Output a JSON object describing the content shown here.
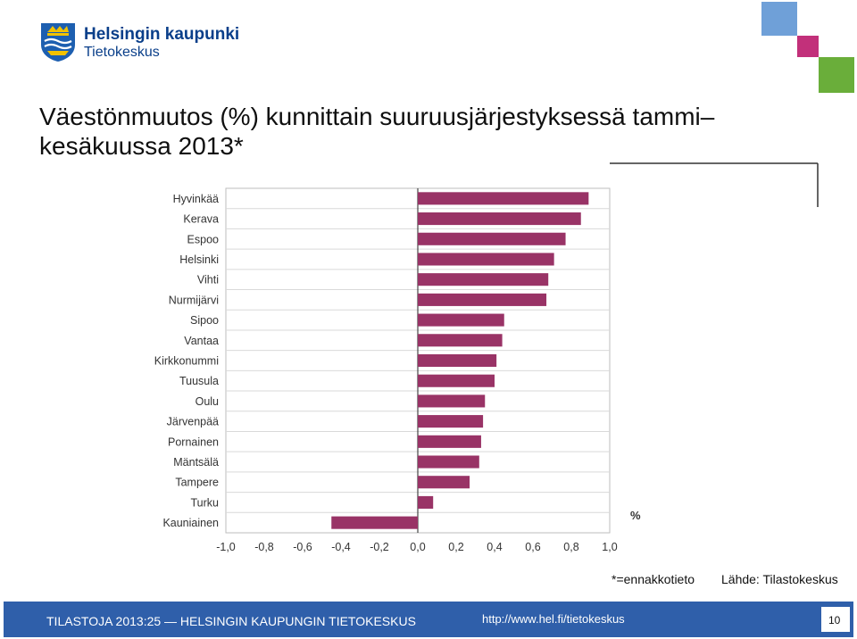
{
  "logo": {
    "name": "Helsingin kaupunki",
    "unit": "Tietokeskus"
  },
  "title": "Väestönmuutos (%) kunnittain suuruusjärjestyksessä tammi– kesäkuussa 2013*",
  "chart_data": {
    "type": "bar",
    "orientation": "horizontal",
    "categories": [
      "Hyvinkää",
      "Kerava",
      "Espoo",
      "Helsinki",
      "Vihti",
      "Nurmijärvi",
      "Sipoo",
      "Vantaa",
      "Kirkkonummi",
      "Tuusula",
      "Oulu",
      "Järvenpää",
      "Pornainen",
      "Mäntsälä",
      "Tampere",
      "Turku",
      "Kauniainen"
    ],
    "values": [
      0.89,
      0.85,
      0.77,
      0.71,
      0.68,
      0.67,
      0.45,
      0.44,
      0.41,
      0.4,
      0.35,
      0.34,
      0.33,
      0.32,
      0.27,
      0.08,
      -0.45
    ],
    "xlim": [
      -1.0,
      1.0
    ],
    "xticks": [
      "-1,0",
      "-0,8",
      "-0,6",
      "-0,4",
      "-0,2",
      "0,0",
      "0,2",
      "0,4",
      "0,6",
      "0,8",
      "1,0"
    ],
    "xlabel": "%",
    "bar_color": "#993366",
    "grid": "horizontal"
  },
  "notes": {
    "estimate": "*=ennakkotieto",
    "source": "Lähde: Tilastokeskus"
  },
  "footer": {
    "left": "TILASTOJA 2013:25 — HELSINGIN KAUPUNGIN TIETOKESKUS",
    "url": "http://www.hel.fi/tietokeskus",
    "page": "10"
  },
  "colors": {
    "accent_blue": "#2f5faa",
    "light_blue": "#6fa0d8",
    "magenta": "#c2307a",
    "green": "#6aae3a"
  }
}
